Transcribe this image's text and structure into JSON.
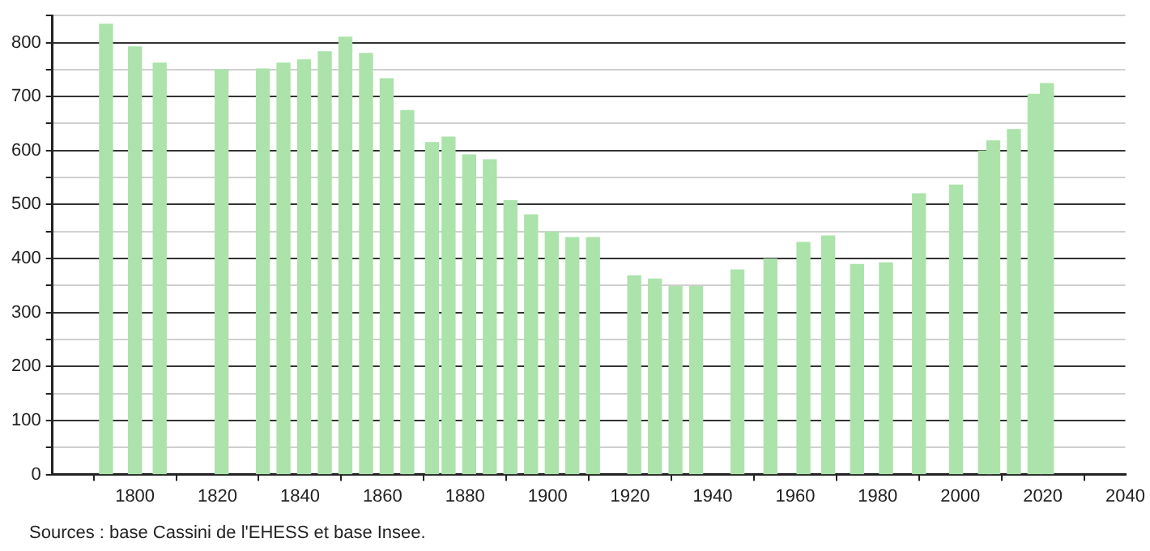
{
  "chart_data": {
    "type": "bar",
    "color": "#abe3ab",
    "x": [
      1793,
      1800,
      1806,
      1821,
      1831,
      1836,
      1841,
      1846,
      1851,
      1856,
      1861,
      1866,
      1872,
      1876,
      1881,
      1886,
      1891,
      1896,
      1901,
      1906,
      1911,
      1921,
      1926,
      1931,
      1936,
      1946,
      1954,
      1962,
      1968,
      1975,
      1982,
      1990,
      1999,
      2006,
      2008,
      2013,
      2018,
      2021
    ],
    "values": [
      834,
      792,
      762,
      749,
      751,
      762,
      768,
      783,
      810,
      780,
      733,
      674,
      615,
      625,
      592,
      583,
      507,
      481,
      449,
      439,
      439,
      368,
      362,
      348,
      348,
      379,
      399,
      430,
      442,
      389,
      392,
      520,
      536,
      599,
      618,
      639,
      704,
      724
    ],
    "xlim": [
      1780,
      2040
    ],
    "xticks": [
      1800,
      1820,
      1840,
      1860,
      1880,
      1900,
      1920,
      1940,
      1960,
      1980,
      2000,
      2020,
      2040
    ],
    "ylim": [
      0,
      850
    ],
    "yticks": [
      0,
      {
        "value": 50,
        "label": null
      },
      100,
      {
        "value": 150,
        "label": null
      },
      200,
      {
        "value": 250,
        "label": null
      },
      300,
      {
        "value": 350,
        "label": null
      },
      400,
      {
        "value": 450,
        "label": null
      },
      500,
      {
        "value": 550,
        "label": null
      },
      600,
      {
        "value": 650,
        "label": null
      },
      700,
      {
        "value": 750,
        "label": null
      },
      800,
      {
        "value": 850,
        "label": null
      }
    ],
    "grid": "y",
    "legend": false,
    "annotations": [
      "Sources : base Cassini de l'EHESS et base Insee."
    ]
  }
}
